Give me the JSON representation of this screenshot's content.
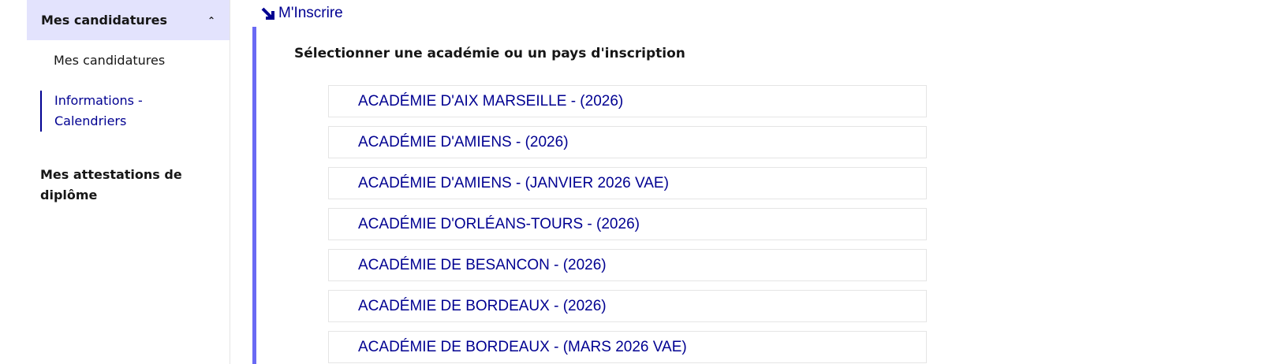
{
  "sidebar": {
    "section_title": "Mes candidatures",
    "items": [
      "Mes candidatures",
      "Informations - Calendriers"
    ],
    "section2_title": "Mes attestations de diplôme"
  },
  "main": {
    "link": "M'Inscrire",
    "heading": "Sélectionner une académie ou un pays d'inscription",
    "academies": [
      "ACADÉMIE D'AIX MARSEILLE - (2026)",
      "ACADÉMIE D'AMIENS - (2026)",
      "ACADÉMIE D'AMIENS - (JANVIER 2026 VAE)",
      "ACADÉMIE D'ORLÉANS-TOURS - (2026)",
      "ACADÉMIE DE BESANCON - (2026)",
      "ACADÉMIE DE BORDEAUX - (2026)",
      "ACADÉMIE DE BORDEAUX - (MARS 2026 VAE)"
    ]
  }
}
